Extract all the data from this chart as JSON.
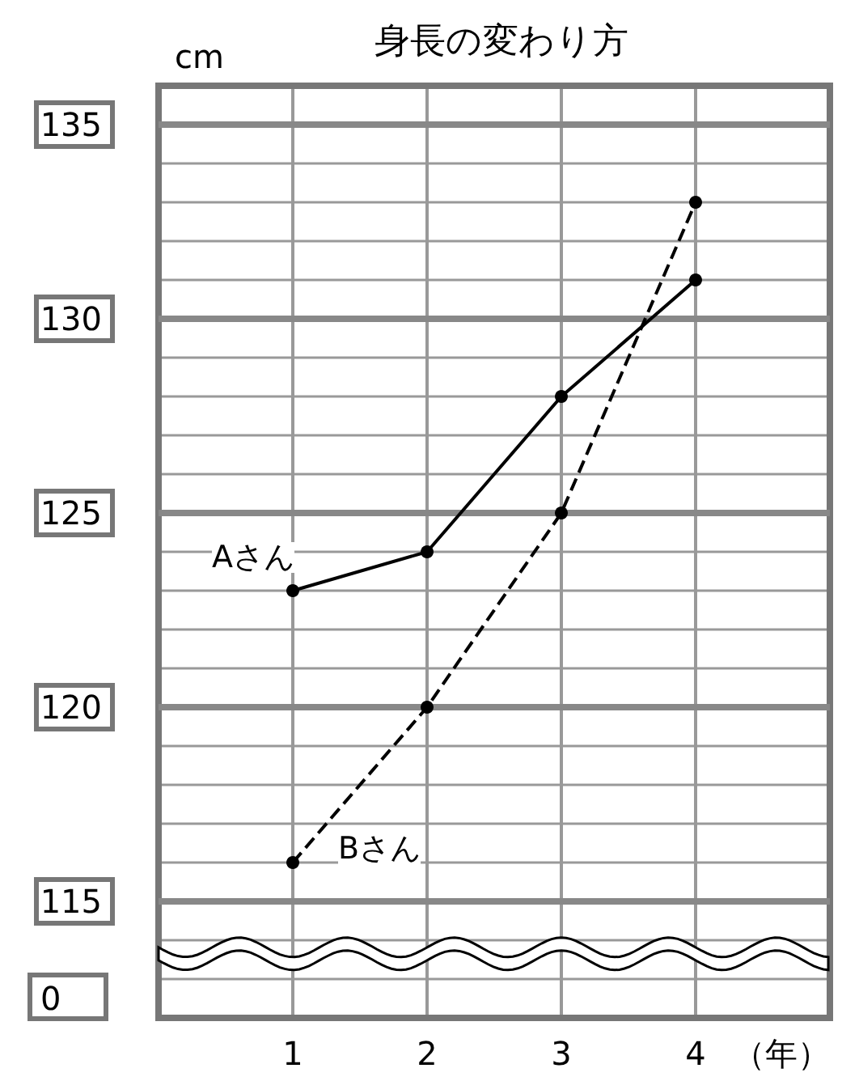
{
  "chart_data": {
    "type": "line",
    "title": "身長の変わり方",
    "xlabel": "（年）",
    "ylabel": "cm",
    "x": [
      1,
      2,
      3,
      4
    ],
    "xlim": [
      0,
      5
    ],
    "xticks": [
      1,
      2,
      3,
      4
    ],
    "ylim": [
      112,
      136
    ],
    "yticks": [
      115,
      120,
      125,
      130,
      135
    ],
    "series": [
      {
        "name": "Aさん",
        "color": "#000000",
        "values": [
          123,
          124,
          128,
          131
        ],
        "line_style": "solid"
      },
      {
        "name": "Bさん",
        "color": "#000000",
        "values": [
          116,
          120,
          125,
          133
        ],
        "line_style": "dashed"
      }
    ],
    "annotations": [
      "0"
    ],
    "grid": true,
    "legend": false,
    "marker": "circle"
  }
}
